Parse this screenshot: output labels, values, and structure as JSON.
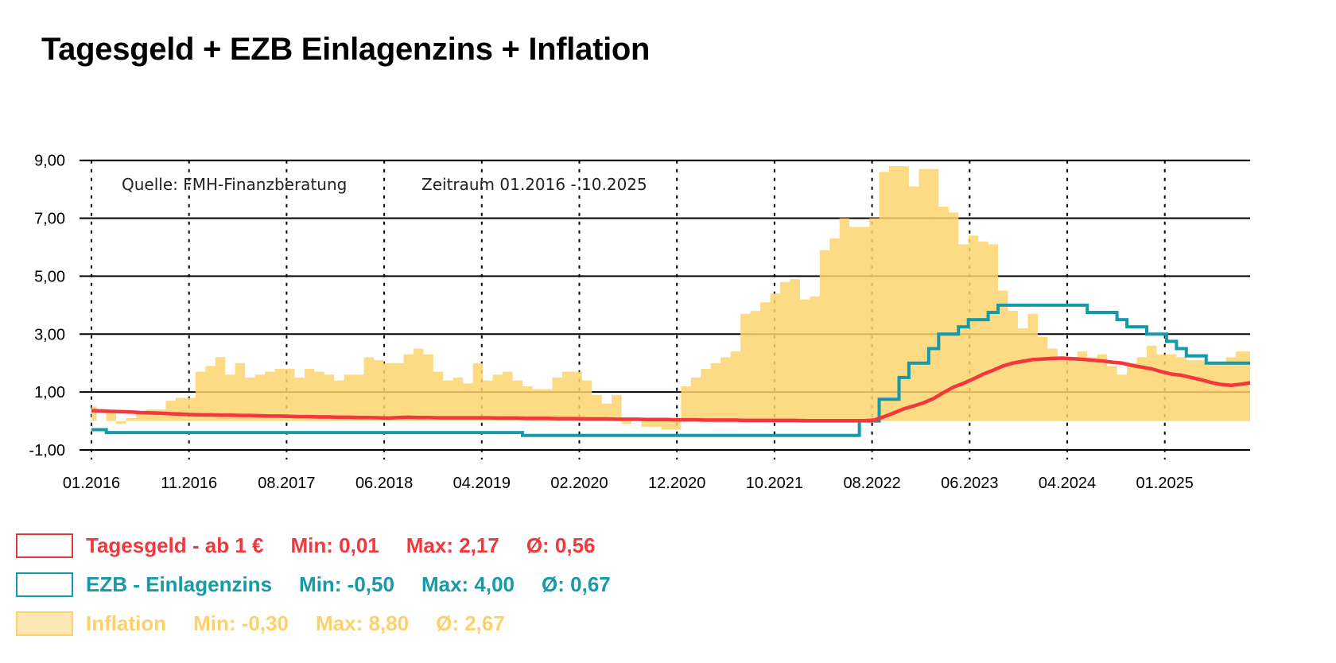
{
  "title": "Tagesgeld + EZB Einlagenzins + Inflation",
  "chart_data": {
    "type": "line",
    "title": "Tagesgeld + EZB Einlagenzins + Inflation",
    "annotations": [
      "Quelle: FMH-Finanzberatung",
      "Zeitraum 01.2016 - 10.2025"
    ],
    "x_range": [
      "01.2016",
      "10.2025"
    ],
    "x_frequency": "monthly",
    "x_tick_labels": [
      "01.2016",
      "11.2016",
      "08.2017",
      "06.2018",
      "04.2019",
      "02.2020",
      "12.2020",
      "10.2021",
      "08.2022",
      "06.2023",
      "04.2024",
      "01.2025"
    ],
    "y_tick_labels": [
      "9,00",
      "7,00",
      "5,00",
      "3,00",
      "1,00",
      "-1,00"
    ],
    "y_ticks": [
      9,
      7,
      5,
      3,
      1,
      -1
    ],
    "ylim": [
      -1,
      9
    ],
    "grid": {
      "horizontal": "solid",
      "vertical": "dotted"
    },
    "legend_placement": "bottom",
    "series": [
      {
        "name": "Tagesgeld - ab 1 €",
        "style": "line",
        "color": "#f2383d",
        "stats": {
          "min": "Min: 0,01",
          "max": "Max: 2,17",
          "avg": "Ø: 0,56"
        },
        "values": [
          0.36,
          0.35,
          0.33,
          0.32,
          0.31,
          0.29,
          0.28,
          0.27,
          0.25,
          0.24,
          0.22,
          0.21,
          0.21,
          0.2,
          0.2,
          0.19,
          0.19,
          0.18,
          0.17,
          0.17,
          0.16,
          0.15,
          0.15,
          0.14,
          0.14,
          0.13,
          0.13,
          0.12,
          0.12,
          0.11,
          0.1,
          0.12,
          0.13,
          0.12,
          0.12,
          0.11,
          0.11,
          0.11,
          0.11,
          0.11,
          0.11,
          0.1,
          0.1,
          0.1,
          0.09,
          0.09,
          0.09,
          0.08,
          0.08,
          0.08,
          0.07,
          0.07,
          0.07,
          0.06,
          0.06,
          0.06,
          0.05,
          0.05,
          0.05,
          0.04,
          0.04,
          0.04,
          0.03,
          0.03,
          0.03,
          0.03,
          0.02,
          0.02,
          0.02,
          0.02,
          0.02,
          0.02,
          0.01,
          0.01,
          0.01,
          0.01,
          0.01,
          0.01,
          0.01,
          0.03,
          0.15,
          0.28,
          0.42,
          0.52,
          0.63,
          0.78,
          0.98,
          1.17,
          1.3,
          1.45,
          1.62,
          1.75,
          1.9,
          2.0,
          2.06,
          2.12,
          2.14,
          2.16,
          2.17,
          2.15,
          2.13,
          2.1,
          2.07,
          2.03,
          2.0,
          1.92,
          1.86,
          1.8,
          1.7,
          1.62,
          1.58,
          1.5,
          1.42,
          1.33,
          1.26,
          1.23,
          1.27,
          1.32
        ]
      },
      {
        "name": "EZB - Einlagenzins",
        "style": "step",
        "color": "#159aa9",
        "stats": {
          "min": "Min: -0,50",
          "max": "Max: 4,00",
          "avg": "Ø: 0,67"
        },
        "values": [
          -0.3,
          -0.3,
          -0.4,
          -0.4,
          -0.4,
          -0.4,
          -0.4,
          -0.4,
          -0.4,
          -0.4,
          -0.4,
          -0.4,
          -0.4,
          -0.4,
          -0.4,
          -0.4,
          -0.4,
          -0.4,
          -0.4,
          -0.4,
          -0.4,
          -0.4,
          -0.4,
          -0.4,
          -0.4,
          -0.4,
          -0.4,
          -0.4,
          -0.4,
          -0.4,
          -0.4,
          -0.4,
          -0.4,
          -0.4,
          -0.4,
          -0.4,
          -0.4,
          -0.4,
          -0.4,
          -0.4,
          -0.4,
          -0.4,
          -0.4,
          -0.4,
          -0.5,
          -0.5,
          -0.5,
          -0.5,
          -0.5,
          -0.5,
          -0.5,
          -0.5,
          -0.5,
          -0.5,
          -0.5,
          -0.5,
          -0.5,
          -0.5,
          -0.5,
          -0.5,
          -0.5,
          -0.5,
          -0.5,
          -0.5,
          -0.5,
          -0.5,
          -0.5,
          -0.5,
          -0.5,
          -0.5,
          -0.5,
          -0.5,
          -0.5,
          -0.5,
          -0.5,
          -0.5,
          -0.5,
          -0.5,
          0.0,
          0.0,
          0.75,
          0.75,
          1.5,
          2.0,
          2.0,
          2.5,
          3.0,
          3.0,
          3.25,
          3.5,
          3.5,
          3.75,
          4.0,
          4.0,
          4.0,
          4.0,
          4.0,
          4.0,
          4.0,
          4.0,
          4.0,
          3.75,
          3.75,
          3.75,
          3.5,
          3.25,
          3.25,
          3.0,
          3.0,
          2.75,
          2.5,
          2.25,
          2.25,
          2.0,
          2.0,
          2.0,
          2.0,
          2.0
        ]
      },
      {
        "name": "Inflation",
        "style": "step-area",
        "color": "#fdd36e",
        "stats": {
          "min": "Min: -0,30",
          "max": "Max: 8,80",
          "avg": "Ø: 2,67"
        },
        "values": [
          0.5,
          0.0,
          0.3,
          -0.1,
          0.1,
          0.3,
          0.4,
          0.4,
          0.7,
          0.8,
          0.8,
          1.7,
          1.9,
          2.2,
          1.6,
          2.0,
          1.5,
          1.6,
          1.7,
          1.8,
          1.8,
          1.5,
          1.8,
          1.7,
          1.6,
          1.4,
          1.6,
          1.6,
          2.2,
          2.1,
          2.0,
          2.0,
          2.3,
          2.5,
          2.3,
          1.7,
          1.4,
          1.5,
          1.3,
          2.0,
          1.4,
          1.6,
          1.7,
          1.4,
          1.2,
          1.1,
          1.1,
          1.5,
          1.7,
          1.7,
          1.4,
          0.9,
          0.6,
          0.9,
          -0.1,
          0.0,
          -0.2,
          -0.2,
          -0.3,
          -0.3,
          1.2,
          1.5,
          1.8,
          2.0,
          2.2,
          2.4,
          3.7,
          3.8,
          4.1,
          4.4,
          4.8,
          4.9,
          4.2,
          4.3,
          5.9,
          6.3,
          7.0,
          6.7,
          6.7,
          7.0,
          8.6,
          8.8,
          8.8,
          8.1,
          8.7,
          8.7,
          7.4,
          7.2,
          6.1,
          6.4,
          6.2,
          6.1,
          4.5,
          3.8,
          3.2,
          3.7,
          2.9,
          2.5,
          2.2,
          2.2,
          2.4,
          2.2,
          2.3,
          1.9,
          1.6,
          2.0,
          2.2,
          2.6,
          2.3,
          2.3,
          2.2,
          2.1,
          2.1,
          2.0,
          2.0,
          2.2,
          2.4,
          2.4
        ]
      }
    ]
  }
}
